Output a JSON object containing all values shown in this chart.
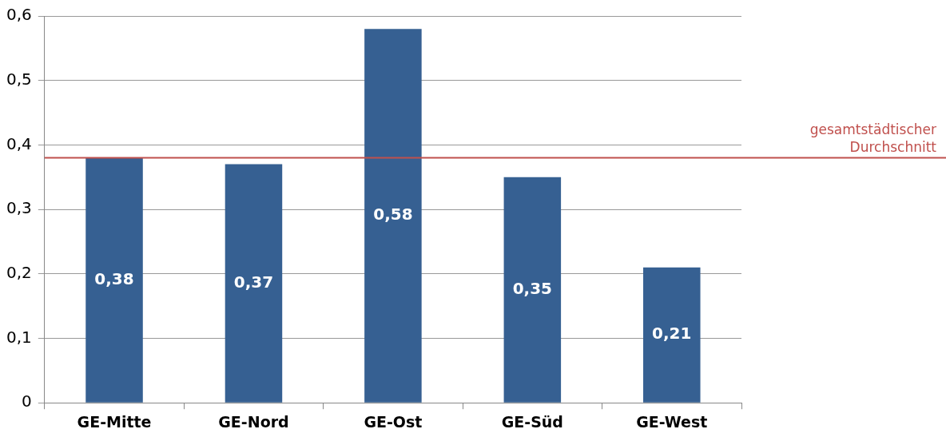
{
  "chart_data": {
    "type": "bar",
    "categories": [
      "GE-Mitte",
      "GE-Nord",
      "GE-Ost",
      "GE-Süd",
      "GE-West"
    ],
    "values": [
      0.38,
      0.37,
      0.58,
      0.35,
      0.21
    ],
    "value_labels": [
      "0,38",
      "0,37",
      "0,58",
      "0,35",
      "0,21"
    ],
    "color": "#366092",
    "ylim": [
      0,
      0.6
    ],
    "yticks": [
      {
        "value": 0,
        "label": "0"
      },
      {
        "value": 0.1,
        "label": "0,1"
      },
      {
        "value": 0.2,
        "label": "0,2"
      },
      {
        "value": 0.3,
        "label": "0,3"
      },
      {
        "value": 0.4,
        "label": "0,4"
      },
      {
        "value": 0.5,
        "label": "0,5"
      },
      {
        "value": 0.6,
        "label": "0,6"
      }
    ],
    "grid": "y",
    "legend": false,
    "ref_lines": [
      {
        "axis": "y",
        "value": 0.38,
        "label": "gesamtstädtischer Durchschnitt",
        "color": "#c0504d"
      }
    ]
  }
}
